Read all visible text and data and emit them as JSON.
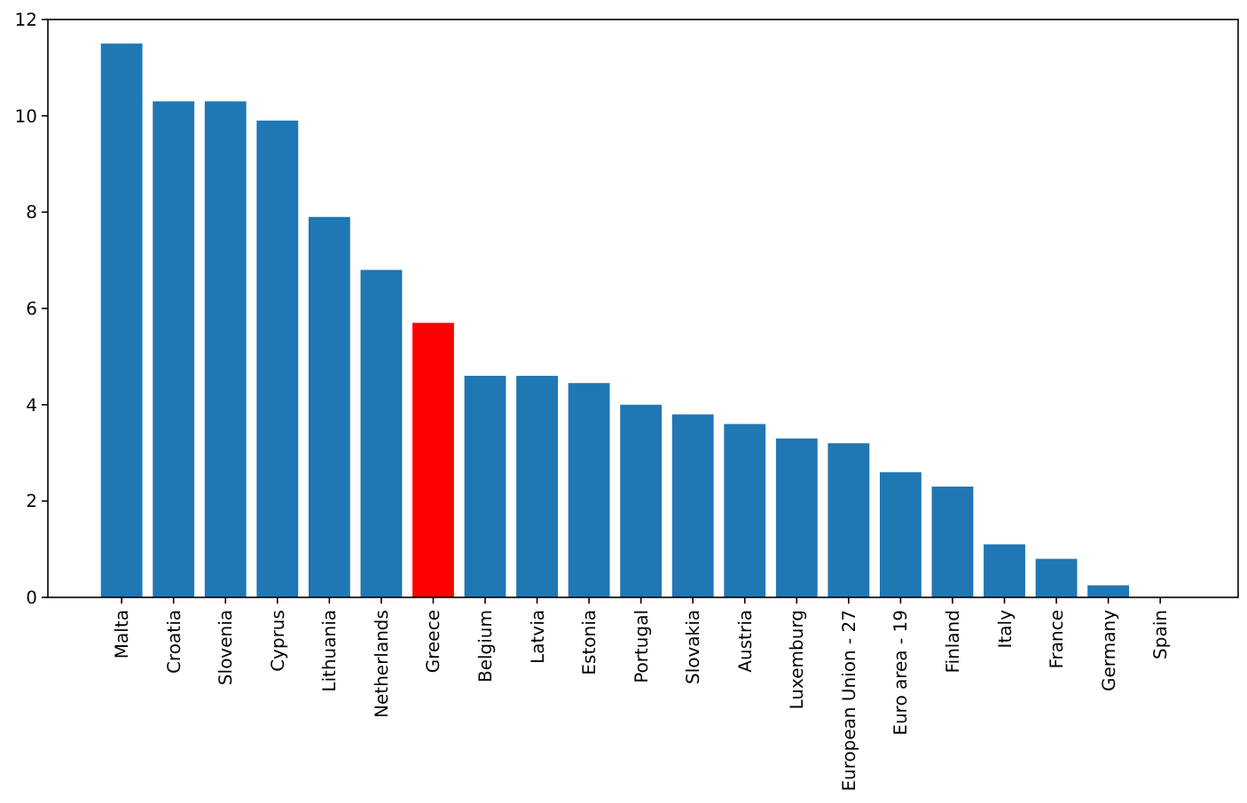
{
  "chart_data": {
    "type": "bar",
    "categories": [
      "Malta",
      "Croatia",
      "Slovenia",
      "Cyprus",
      "Lithuania",
      "Netherlands",
      "Greece",
      "Belgium",
      "Latvia",
      "Estonia",
      "Portugal",
      "Slovakia",
      "Austria",
      "Luxemburg",
      "European Union - 27",
      "Euro area - 19",
      "Finland",
      "Italy",
      "France",
      "Germany",
      "Spain"
    ],
    "values": [
      11.5,
      10.3,
      10.3,
      9.9,
      7.9,
      6.8,
      5.7,
      4.6,
      4.6,
      4.45,
      4.0,
      3.8,
      3.6,
      3.3,
      3.2,
      2.6,
      2.3,
      1.1,
      0.8,
      0.25,
      0
    ],
    "colors": [
      "#1f77b4",
      "#1f77b4",
      "#1f77b4",
      "#1f77b4",
      "#1f77b4",
      "#1f77b4",
      "#ff0000",
      "#1f77b4",
      "#1f77b4",
      "#1f77b4",
      "#1f77b4",
      "#1f77b4",
      "#1f77b4",
      "#1f77b4",
      "#1f77b4",
      "#1f77b4",
      "#1f77b4",
      "#1f77b4",
      "#1f77b4",
      "#1f77b4",
      "#1f77b4"
    ],
    "ylim": [
      0,
      12
    ],
    "yticks": [
      0,
      2,
      4,
      6,
      8,
      10,
      12
    ],
    "grid": false
  }
}
